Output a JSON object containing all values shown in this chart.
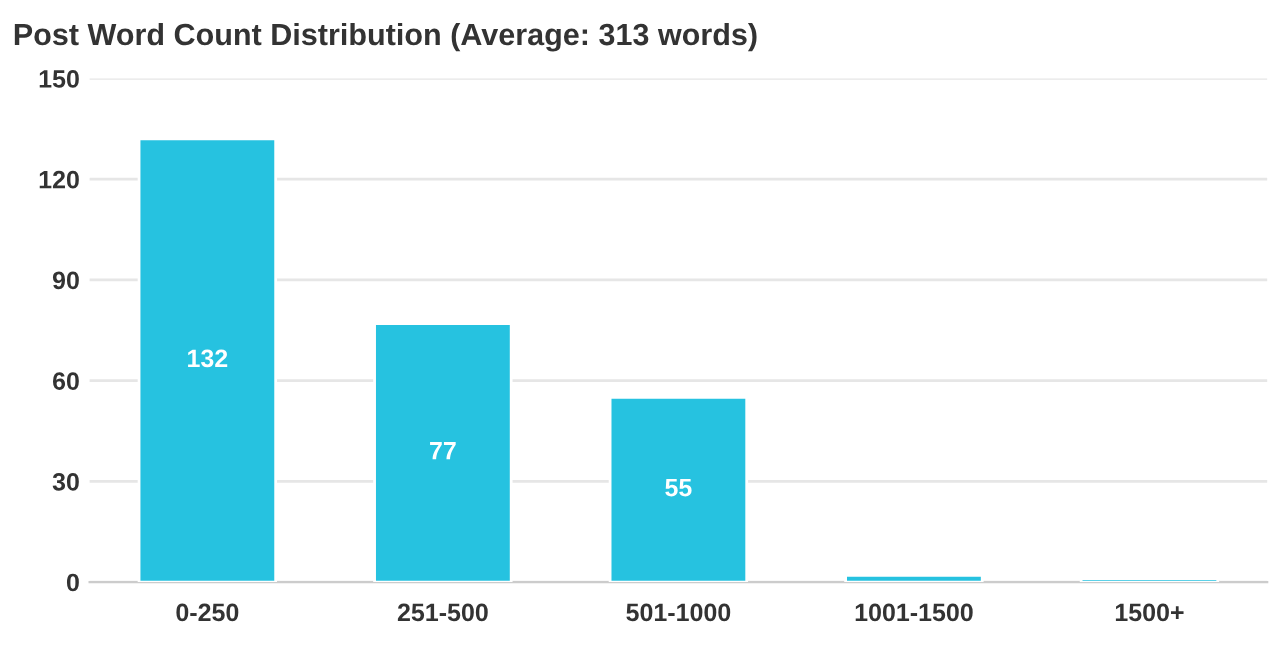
{
  "chart_data": {
    "type": "bar",
    "title": "Post Word Count Distribution (Average: 313 words)",
    "categories": [
      "0-250",
      "251-500",
      "501-1000",
      "1001-1500",
      "1500+"
    ],
    "values": [
      132,
      77,
      55,
      2,
      1
    ],
    "value_labels": [
      "132",
      "77",
      "55",
      null,
      null
    ],
    "color": "#26c2e0",
    "ylim": [
      0,
      150
    ],
    "yticks": [
      0,
      30,
      60,
      90,
      120,
      150
    ],
    "grid": "y"
  }
}
